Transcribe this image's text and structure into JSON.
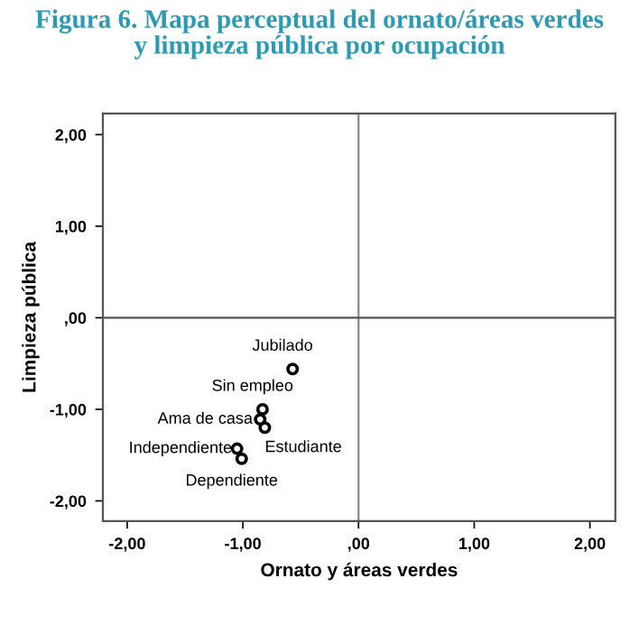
{
  "chart_data": {
    "type": "scatter",
    "title": "Figura 6. Mapa perceptual del ornato/áreas verdes\ny limpieza pública por ocupación",
    "xlabel": "Ornato y áreas verdes",
    "ylabel": "Limpieza pública",
    "x": [
      -0.57,
      -0.83,
      -0.85,
      -0.81,
      -1.05,
      -1.01
    ],
    "series": [
      {
        "color": "#000000",
        "values": [
          -0.56,
          -1.0,
          -1.11,
          -1.2,
          -1.43,
          -1.54
        ]
      }
    ],
    "annotations": [
      {
        "text": "Jubilado",
        "x": -0.57,
        "y": -0.56
      },
      {
        "text": "Sin empleo",
        "x": -0.83,
        "y": -1.0
      },
      {
        "text": "Ama de casa",
        "x": -0.85,
        "y": -1.11
      },
      {
        "text": "Estudiante",
        "x": -0.81,
        "y": -1.2
      },
      {
        "text": "Independiente",
        "x": -1.05,
        "y": -1.43
      },
      {
        "text": "Dependiente",
        "x": -1.01,
        "y": -1.54
      }
    ],
    "xlim": [
      -2.21,
      2.22
    ],
    "ylim": [
      -2.22,
      2.23
    ],
    "xticks": [
      {
        "value": -2,
        "label": "-2,00"
      },
      {
        "value": -1,
        "label": "-1,00"
      },
      {
        "value": 0,
        "label": ",00"
      },
      {
        "value": 1,
        "label": "1,00"
      },
      {
        "value": 2,
        "label": "2,00"
      }
    ],
    "yticks": [
      {
        "value": -2,
        "label": "-2,00"
      },
      {
        "value": -1,
        "label": "-1,00"
      },
      {
        "value": 0,
        "label": ",00"
      },
      {
        "value": 1,
        "label": "1,00"
      },
      {
        "value": 2,
        "label": "2,00"
      }
    ],
    "ref_lines": [
      {
        "axis": "x",
        "value": 0,
        "color": "#888888"
      },
      {
        "axis": "y",
        "value": 0,
        "color": "#555555"
      }
    ],
    "marker": "circle",
    "grid": false,
    "legend": false
  }
}
